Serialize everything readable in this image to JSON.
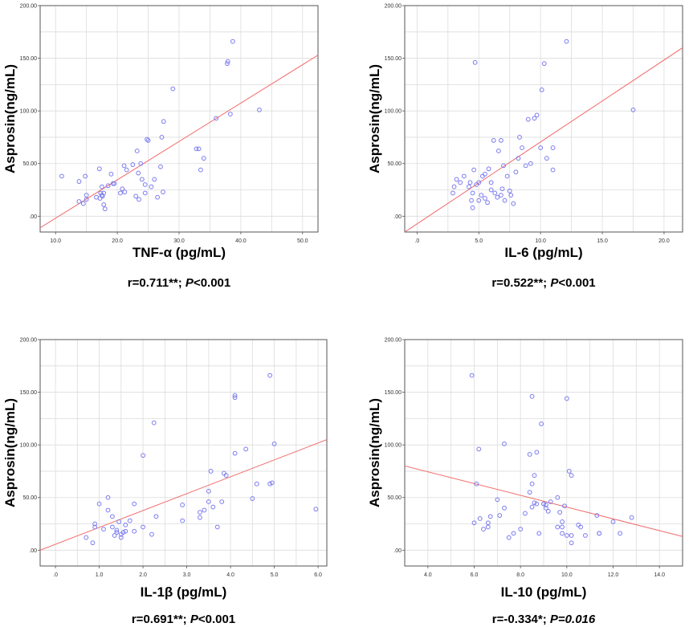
{
  "chart_data": [
    {
      "type": "scatter",
      "xlabel": "TNF-α (pg/mL)",
      "ylabel": "Asprosin(ng/mL)",
      "xlim": [
        7.5,
        52.5
      ],
      "ylim": [
        -15,
        200
      ],
      "xticks": [
        10,
        20,
        30,
        40,
        50
      ],
      "xtick_labels": [
        "10.0",
        "20.0",
        "30.0",
        "40.0",
        "50.0"
      ],
      "yticks": [
        0,
        50,
        100,
        150,
        200
      ],
      "ytick_labels": [
        ".00",
        "50.00",
        "100.00",
        "150.00",
        "200.00"
      ],
      "fit_line": {
        "x": [
          7.5,
          52.5
        ],
        "y": [
          -11,
          153
        ]
      },
      "annotation": {
        "prefix": "r=0.711**;  ",
        "p_label": "P",
        "suffix": "<0.001",
        "italic_suffix": false
      },
      "points": [
        [
          11,
          38
        ],
        [
          13.8,
          14
        ],
        [
          13.8,
          33
        ],
        [
          14.5,
          12
        ],
        [
          14.8,
          38
        ],
        [
          15,
          20
        ],
        [
          15,
          16
        ],
        [
          16.6,
          18
        ],
        [
          17.1,
          45
        ],
        [
          17.2,
          17
        ],
        [
          17.3,
          22
        ],
        [
          17.5,
          28
        ],
        [
          17.5,
          20
        ],
        [
          17.6,
          19
        ],
        [
          17.8,
          22
        ],
        [
          17.8,
          11
        ],
        [
          18,
          7
        ],
        [
          18.5,
          29
        ],
        [
          19,
          40
        ],
        [
          19.3,
          31
        ],
        [
          19.5,
          31
        ],
        [
          20.5,
          22
        ],
        [
          20.8,
          26
        ],
        [
          21.1,
          48
        ],
        [
          21.2,
          23
        ],
        [
          21.5,
          44
        ],
        [
          22.5,
          49
        ],
        [
          23,
          19
        ],
        [
          23.2,
          62
        ],
        [
          23.4,
          41
        ],
        [
          23.5,
          16
        ],
        [
          23.8,
          50
        ],
        [
          24,
          35
        ],
        [
          24.5,
          30
        ],
        [
          24.5,
          22
        ],
        [
          24.8,
          73
        ],
        [
          25,
          72
        ],
        [
          25.5,
          28
        ],
        [
          26,
          35
        ],
        [
          26.5,
          18
        ],
        [
          27,
          47
        ],
        [
          27.2,
          75
        ],
        [
          27.4,
          23
        ],
        [
          27.5,
          90
        ],
        [
          29,
          121
        ],
        [
          32.8,
          64
        ],
        [
          33.2,
          64
        ],
        [
          33.5,
          44
        ],
        [
          34,
          55
        ],
        [
          36,
          93
        ],
        [
          37.8,
          145
        ],
        [
          37.9,
          147
        ],
        [
          38.3,
          97
        ],
        [
          38.7,
          166
        ],
        [
          43,
          101
        ]
      ]
    },
    {
      "type": "scatter",
      "xlabel": "IL-6 (pg/mL)",
      "ylabel": "Asprosin(ng/mL)",
      "xlim": [
        -1,
        21.5
      ],
      "ylim": [
        -15,
        200
      ],
      "xticks": [
        0,
        5,
        10,
        15,
        20
      ],
      "xtick_labels": [
        ".0",
        "5.0",
        "10.0",
        "15.0",
        "20.0"
      ],
      "yticks": [
        0,
        50,
        100,
        150,
        200
      ],
      "ytick_labels": [
        ".00",
        "50.00",
        "100.00",
        "150.00",
        "200.00"
      ],
      "fit_line": {
        "x": [
          -1,
          21.5
        ],
        "y": [
          -15,
          160
        ]
      },
      "annotation": {
        "prefix": "r=0.522**;  ",
        "p_label": "P",
        "suffix": "<0.001",
        "italic_suffix": false
      },
      "points": [
        [
          2.9,
          22
        ],
        [
          3,
          28
        ],
        [
          3.2,
          35
        ],
        [
          3.5,
          32
        ],
        [
          3.8,
          38
        ],
        [
          4.2,
          28
        ],
        [
          4.3,
          32
        ],
        [
          4.4,
          15
        ],
        [
          4.5,
          22
        ],
        [
          4.5,
          8
        ],
        [
          4.6,
          44
        ],
        [
          4.7,
          146
        ],
        [
          4.8,
          30
        ],
        [
          5,
          15
        ],
        [
          5,
          32
        ],
        [
          5.2,
          20
        ],
        [
          5.3,
          38
        ],
        [
          5.5,
          17
        ],
        [
          5.5,
          40
        ],
        [
          5.7,
          13
        ],
        [
          5.8,
          45
        ],
        [
          6,
          25
        ],
        [
          6,
          32
        ],
        [
          6.2,
          72
        ],
        [
          6.3,
          22
        ],
        [
          6.5,
          18
        ],
        [
          6.6,
          62
        ],
        [
          6.8,
          20
        ],
        [
          6.8,
          72
        ],
        [
          6.9,
          26
        ],
        [
          7,
          48
        ],
        [
          7.1,
          15
        ],
        [
          7.3,
          38
        ],
        [
          7.5,
          24
        ],
        [
          7.6,
          20
        ],
        [
          7.8,
          12
        ],
        [
          8,
          42
        ],
        [
          8.2,
          55
        ],
        [
          8.3,
          75
        ],
        [
          8.5,
          65
        ],
        [
          8.8,
          48
        ],
        [
          9,
          92
        ],
        [
          9.2,
          50
        ],
        [
          9.5,
          93
        ],
        [
          9.7,
          96
        ],
        [
          10,
          65
        ],
        [
          10.1,
          120
        ],
        [
          10.3,
          145
        ],
        [
          10.5,
          55
        ],
        [
          11,
          65
        ],
        [
          11,
          44
        ],
        [
          12.1,
          166
        ],
        [
          17.5,
          101
        ]
      ]
    },
    {
      "type": "scatter",
      "xlabel": "IL-1β (pg/mL)",
      "ylabel": "Asprosin(ng/mL)",
      "xlim": [
        -0.35,
        6.2
      ],
      "ylim": [
        -15,
        200
      ],
      "xticks": [
        0,
        1,
        2,
        3,
        4,
        5,
        6
      ],
      "xtick_labels": [
        ".0",
        "1.0",
        "2.0",
        "3.0",
        "4.0",
        "5.0",
        "6.0"
      ],
      "yticks": [
        0,
        50,
        100,
        150,
        200
      ],
      "ytick_labels": [
        ".00",
        "50.00",
        "100.00",
        "150.00",
        "200.00"
      ],
      "fit_line": {
        "x": [
          -0.35,
          6.2
        ],
        "y": [
          0,
          105
        ]
      },
      "annotation": {
        "prefix": "r=0.691**;  ",
        "p_label": "P",
        "suffix": "<0.001",
        "italic_suffix": false
      },
      "points": [
        [
          0.7,
          12
        ],
        [
          0.85,
          7
        ],
        [
          0.9,
          22
        ],
        [
          0.9,
          25
        ],
        [
          1,
          44
        ],
        [
          1.1,
          20
        ],
        [
          1.2,
          50
        ],
        [
          1.2,
          38
        ],
        [
          1.3,
          22
        ],
        [
          1.3,
          32
        ],
        [
          1.35,
          14
        ],
        [
          1.4,
          17
        ],
        [
          1.4,
          19
        ],
        [
          1.45,
          27
        ],
        [
          1.5,
          15
        ],
        [
          1.5,
          12
        ],
        [
          1.55,
          17
        ],
        [
          1.6,
          24
        ],
        [
          1.6,
          18
        ],
        [
          1.7,
          28
        ],
        [
          1.8,
          44
        ],
        [
          1.8,
          18
        ],
        [
          2,
          90
        ],
        [
          2,
          22
        ],
        [
          2.2,
          15
        ],
        [
          2.25,
          121
        ],
        [
          2.3,
          32
        ],
        [
          2.9,
          28
        ],
        [
          2.9,
          43
        ],
        [
          3.3,
          36
        ],
        [
          3.3,
          31
        ],
        [
          3.4,
          38
        ],
        [
          3.5,
          46
        ],
        [
          3.5,
          56
        ],
        [
          3.55,
          75
        ],
        [
          3.6,
          41
        ],
        [
          3.7,
          22
        ],
        [
          3.8,
          46
        ],
        [
          3.85,
          73
        ],
        [
          3.9,
          71
        ],
        [
          4.1,
          145
        ],
        [
          4.1,
          147
        ],
        [
          4.1,
          92
        ],
        [
          4.35,
          96
        ],
        [
          4.5,
          49
        ],
        [
          4.6,
          63
        ],
        [
          4.9,
          63
        ],
        [
          4.95,
          64
        ],
        [
          4.9,
          166
        ],
        [
          5,
          101
        ],
        [
          5.95,
          39
        ]
      ]
    },
    {
      "type": "scatter",
      "xlabel": "IL-10 (pg/mL)",
      "ylabel": "Asprosin(ng/mL)",
      "xlim": [
        3,
        15
      ],
      "ylim": [
        -15,
        200
      ],
      "xticks": [
        4,
        6,
        8,
        10,
        12,
        14
      ],
      "xtick_labels": [
        "4.0",
        "6.0",
        "8.0",
        "10.0",
        "12.0",
        "14.0"
      ],
      "yticks": [
        0,
        50,
        100,
        150,
        200
      ],
      "ytick_labels": [
        ".00",
        "50.00",
        "100.00",
        "150.00",
        "200.00"
      ],
      "fit_line": {
        "x": [
          3,
          15
        ],
        "y": [
          80,
          13
        ]
      },
      "annotation": {
        "prefix": "r=-0.334*;  ",
        "p_label": "P",
        "suffix": "=0.016",
        "italic_suffix": true
      },
      "points": [
        [
          5.9,
          166
        ],
        [
          6,
          26
        ],
        [
          6.1,
          63
        ],
        [
          6.2,
          96
        ],
        [
          6.25,
          30
        ],
        [
          6.4,
          20
        ],
        [
          6.6,
          26
        ],
        [
          6.6,
          22
        ],
        [
          6.7,
          32
        ],
        [
          7,
          48
        ],
        [
          7.1,
          33
        ],
        [
          7.3,
          101
        ],
        [
          7.3,
          40
        ],
        [
          7.5,
          12
        ],
        [
          7.7,
          16
        ],
        [
          8,
          20
        ],
        [
          8.2,
          35
        ],
        [
          8.4,
          91
        ],
        [
          8.4,
          55
        ],
        [
          8.5,
          63
        ],
        [
          8.5,
          41
        ],
        [
          8.5,
          146
        ],
        [
          8.6,
          71
        ],
        [
          8.6,
          45
        ],
        [
          8.7,
          93
        ],
        [
          8.7,
          44
        ],
        [
          8.8,
          16
        ],
        [
          8.9,
          120
        ],
        [
          9,
          44
        ],
        [
          9,
          44
        ],
        [
          9.1,
          43
        ],
        [
          9.1,
          40
        ],
        [
          9.2,
          37
        ],
        [
          9.3,
          46
        ],
        [
          9.6,
          22
        ],
        [
          9.6,
          50
        ],
        [
          9.7,
          36
        ],
        [
          9.8,
          16
        ],
        [
          9.8,
          22
        ],
        [
          9.8,
          27
        ],
        [
          9.9,
          42
        ],
        [
          10,
          144
        ],
        [
          10,
          14
        ],
        [
          10.1,
          75
        ],
        [
          10.2,
          7
        ],
        [
          10.2,
          71
        ],
        [
          10.2,
          14
        ],
        [
          10.5,
          24
        ],
        [
          10.6,
          22
        ],
        [
          10.8,
          14
        ],
        [
          11.3,
          33
        ],
        [
          11.4,
          16
        ],
        [
          11.4,
          16
        ],
        [
          12,
          27
        ],
        [
          12.3,
          16
        ],
        [
          12.8,
          31
        ]
      ]
    }
  ],
  "style": {
    "point_color": "#7b7bef",
    "fit_line_color": "#f26b6b",
    "plot_background": "#ffffff",
    "grid_color": "#dcdcdc"
  }
}
